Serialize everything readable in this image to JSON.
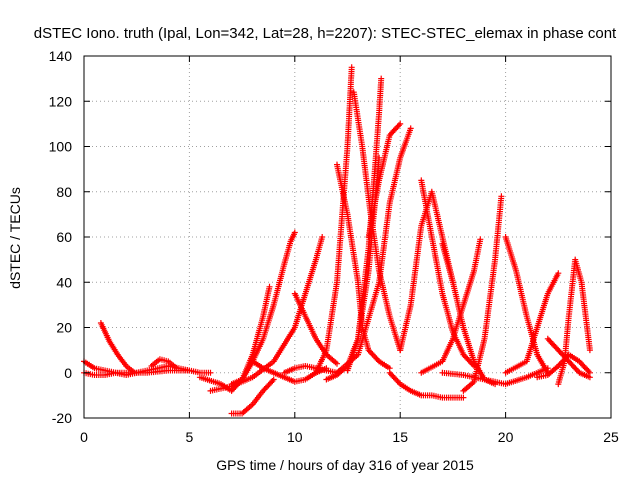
{
  "chart_data": {
    "type": "scatter",
    "title": "dSTEC Iono. truth (Ipal, Lon=342, Lat=28, h=2207): STEC-STEC_elemax in phase cont",
    "xlabel": "GPS time / hours of day 316 of year 2015",
    "ylabel": "dSTEC  / TECUs",
    "xlim": [
      0,
      25
    ],
    "ylim": [
      -20,
      140
    ],
    "xticks": [
      0,
      5,
      10,
      15,
      20,
      25
    ],
    "yticks": [
      -20,
      0,
      20,
      40,
      60,
      80,
      100,
      120,
      140
    ],
    "grid": true,
    "marker": "+",
    "color": "#ff0000",
    "series": [
      {
        "x": [
          0.0,
          0.5,
          1.0,
          1.5,
          2.0,
          2.5,
          3.0,
          3.5,
          4.0,
          4.5,
          5.0,
          5.5,
          6.0
        ],
        "y": [
          5,
          2,
          1,
          0,
          -1,
          0,
          1,
          2,
          3,
          2,
          1,
          0,
          0
        ]
      },
      {
        "x": [
          0.0,
          0.5,
          1.0,
          1.5,
          2.0,
          3.0,
          4.0,
          5.0
        ],
        "y": [
          0,
          -1,
          -1,
          0,
          0,
          0,
          1,
          1
        ]
      },
      {
        "x": [
          0.8,
          1.2,
          1.6,
          2.0,
          2.4
        ],
        "y": [
          22,
          14,
          8,
          3,
          0
        ]
      },
      {
        "x": [
          3.2,
          3.6,
          4.0,
          4.4
        ],
        "y": [
          3,
          6,
          5,
          2
        ]
      },
      {
        "x": [
          5.5,
          6.5,
          7.0,
          7.5,
          8.0,
          8.5,
          8.8
        ],
        "y": [
          -2,
          -5,
          -8,
          -3,
          8,
          25,
          38
        ]
      },
      {
        "x": [
          7.0,
          7.5,
          8.0,
          8.5,
          9.0,
          9.5,
          9.8,
          10.0
        ],
        "y": [
          -5,
          -3,
          5,
          15,
          30,
          48,
          58,
          62
        ]
      },
      {
        "x": [
          7.0,
          7.5,
          8.0,
          8.5,
          9.0
        ],
        "y": [
          -18,
          -18,
          -14,
          -8,
          -3
        ]
      },
      {
        "x": [
          6.0,
          7.0,
          8.0,
          9.0,
          10.0,
          10.5,
          11.0,
          11.3
        ],
        "y": [
          -8,
          -6,
          -2,
          5,
          20,
          35,
          50,
          60
        ]
      },
      {
        "x": [
          8.0,
          8.5,
          9.0,
          9.5,
          10.0,
          10.5,
          11.0,
          11.5
        ],
        "y": [
          5,
          2,
          0,
          -2,
          -4,
          -3,
          0,
          2
        ]
      },
      {
        "x": [
          9.5,
          10.0,
          10.5,
          11.0,
          11.5,
          12.0
        ],
        "y": [
          0,
          2,
          3,
          2,
          1,
          0
        ]
      },
      {
        "x": [
          10.0,
          10.5,
          11.0,
          11.5,
          12.0
        ],
        "y": [
          35,
          25,
          15,
          8,
          4
        ]
      },
      {
        "x": [
          12.0,
          12.5,
          13.0,
          13.2,
          13.5,
          14.0,
          14.5
        ],
        "y": [
          92,
          70,
          40,
          20,
          10,
          5,
          2
        ]
      },
      {
        "x": [
          11.0,
          11.5,
          12.0,
          12.5,
          12.7
        ],
        "y": [
          0,
          10,
          40,
          100,
          135
        ]
      },
      {
        "x": [
          12.8,
          13.2,
          13.6,
          14.0,
          14.5,
          15.0
        ],
        "y": [
          124,
          100,
          70,
          45,
          25,
          10
        ]
      },
      {
        "x": [
          11.5,
          12.0,
          12.5,
          13.0,
          13.5,
          14.0
        ],
        "y": [
          -3,
          -1,
          3,
          15,
          45,
          95
        ]
      },
      {
        "x": [
          12.5,
          13.0,
          13.5,
          13.8,
          14.0,
          14.1
        ],
        "y": [
          1,
          15,
          55,
          90,
          115,
          130
        ]
      },
      {
        "x": [
          13.5,
          14.0,
          14.5,
          15.0
        ],
        "y": [
          60,
          85,
          105,
          110
        ]
      },
      {
        "x": [
          12.0,
          13.0,
          14.0,
          14.5,
          15.0,
          15.5
        ],
        "y": [
          0,
          8,
          40,
          75,
          95,
          108
        ]
      },
      {
        "x": [
          15.0,
          15.5,
          16.0,
          16.5,
          17.0,
          17.5
        ],
        "y": [
          10,
          30,
          65,
          80,
          60,
          40
        ]
      },
      {
        "x": [
          14.5,
          15.0,
          15.5,
          16.0,
          16.5,
          17.0,
          18.0
        ],
        "y": [
          0,
          -5,
          -8,
          -10,
          -10,
          -11,
          -11
        ]
      },
      {
        "x": [
          16.0,
          16.5,
          17.0,
          17.5,
          18.0,
          18.5
        ],
        "y": [
          85,
          60,
          35,
          18,
          8,
          3
        ]
      },
      {
        "x": [
          17.0,
          17.5,
          18.0,
          18.5,
          19.0,
          19.5
        ],
        "y": [
          57,
          40,
          20,
          5,
          -3,
          -5
        ]
      },
      {
        "x": [
          16.0,
          17.0,
          17.5,
          18.0,
          18.5,
          18.8
        ],
        "y": [
          0,
          5,
          15,
          30,
          45,
          59
        ]
      },
      {
        "x": [
          18.0,
          18.5,
          19.0,
          19.5,
          19.8
        ],
        "y": [
          -8,
          -4,
          15,
          50,
          78
        ]
      },
      {
        "x": [
          17.0,
          18.0,
          19.0,
          20.0,
          21.0,
          22.0
        ],
        "y": [
          0,
          -1,
          -3,
          -5,
          -2,
          2
        ]
      },
      {
        "x": [
          20.0,
          20.5,
          21.0,
          21.5,
          22.0
        ],
        "y": [
          60,
          45,
          25,
          8,
          0
        ]
      },
      {
        "x": [
          20.0,
          21.0,
          21.5,
          22.0,
          22.5
        ],
        "y": [
          0,
          5,
          20,
          35,
          44
        ]
      },
      {
        "x": [
          22.0,
          22.5,
          23.0,
          23.5,
          24.0
        ],
        "y": [
          15,
          10,
          5,
          0,
          -2
        ]
      },
      {
        "x": [
          22.5,
          22.8,
          23.0,
          23.3,
          23.6,
          24.0
        ],
        "y": [
          -5,
          5,
          25,
          50,
          40,
          10
        ]
      },
      {
        "x": [
          21.5,
          22.0,
          22.5,
          23.0,
          23.5,
          24.0
        ],
        "y": [
          -2,
          -1,
          3,
          8,
          5,
          0
        ]
      }
    ]
  }
}
